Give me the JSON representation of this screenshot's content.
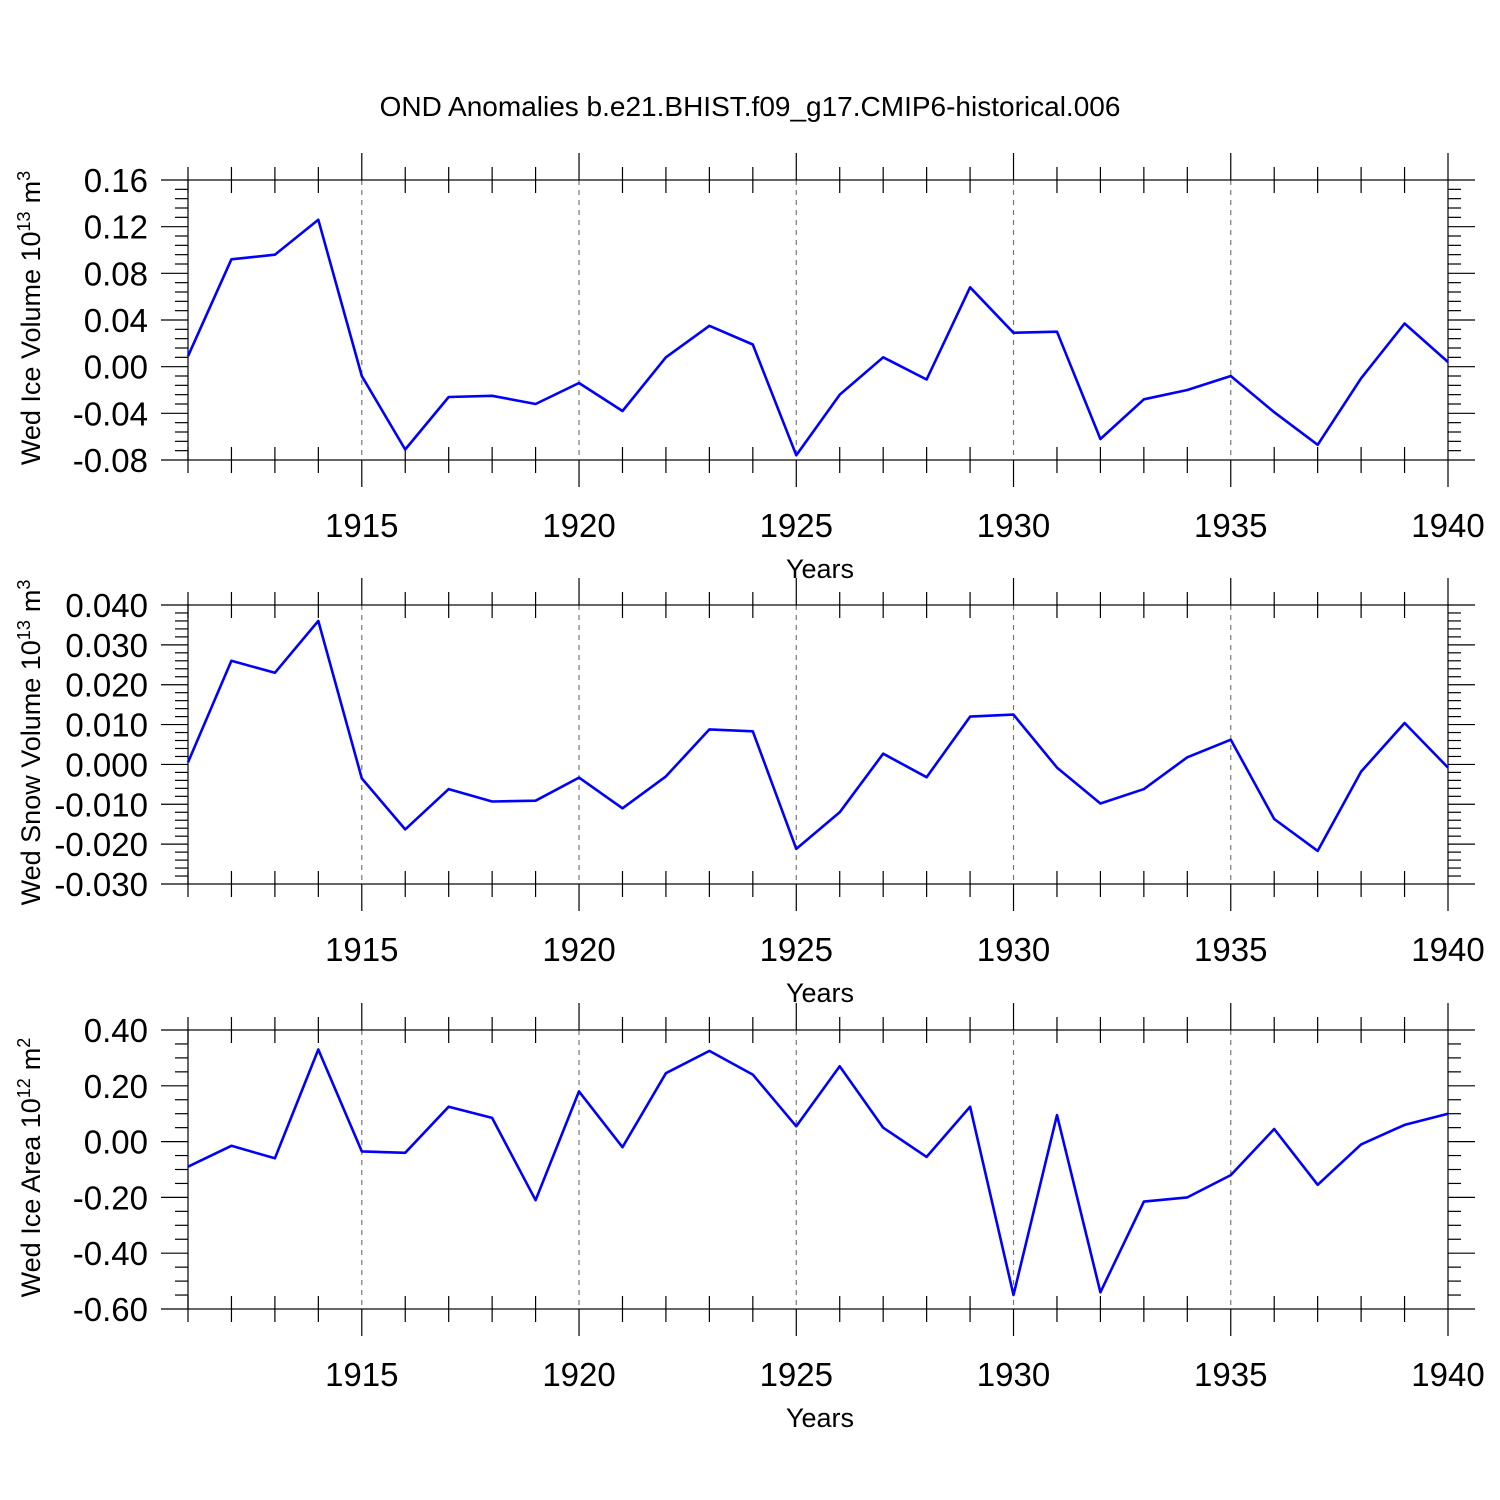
{
  "title": "OND Anomalies b.e21.BHIST.f09_g17.CMIP6-historical.006",
  "chart_data": [
    {
      "type": "line",
      "xlabel": "Years",
      "ylabel_text": "Wed Ice Volume 10",
      "ylabel_exp": "13",
      "ylabel_unit": "m",
      "ylabel_unit_exp": "3",
      "xlim": [
        1911,
        1940
      ],
      "ylim": [
        -0.08,
        0.16
      ],
      "xticks": [
        1915,
        1920,
        1925,
        1930,
        1935,
        1940
      ],
      "xtick_labels": [
        "1915",
        "1920",
        "1925",
        "1930",
        "1935",
        "1940"
      ],
      "yticks": [
        -0.08,
        -0.04,
        0.0,
        0.04,
        0.08,
        0.12,
        0.16
      ],
      "ytick_labels": [
        "-0.08",
        "-0.04",
        "0.00",
        "0.04",
        "0.08",
        "0.12",
        "0.16"
      ],
      "grid": "x-dashed",
      "color": "#0000ff",
      "x": [
        1911,
        1912,
        1913,
        1914,
        1915,
        1916,
        1917,
        1918,
        1919,
        1920,
        1921,
        1922,
        1923,
        1924,
        1925,
        1926,
        1927,
        1928,
        1929,
        1930,
        1931,
        1932,
        1933,
        1934,
        1935,
        1936,
        1937,
        1938,
        1939,
        1940
      ],
      "y": [
        0.009,
        0.092,
        0.096,
        0.126,
        -0.008,
        -0.071,
        -0.026,
        -0.025,
        -0.032,
        -0.014,
        -0.038,
        0.008,
        0.035,
        0.019,
        -0.076,
        -0.024,
        0.008,
        -0.011,
        0.068,
        0.029,
        0.03,
        -0.062,
        -0.028,
        -0.02,
        -0.008,
        -0.039,
        -0.067,
        -0.01,
        0.037,
        0.004
      ]
    },
    {
      "type": "line",
      "xlabel": "Years",
      "ylabel_text": "Wed Snow Volume 10",
      "ylabel_exp": "13",
      "ylabel_unit": "m",
      "ylabel_unit_exp": "3",
      "xlim": [
        1911,
        1940
      ],
      "ylim": [
        -0.03,
        0.04
      ],
      "xticks": [
        1915,
        1920,
        1925,
        1930,
        1935,
        1940
      ],
      "xtick_labels": [
        "1915",
        "1920",
        "1925",
        "1930",
        "1935",
        "1940"
      ],
      "yticks": [
        -0.03,
        -0.02,
        -0.01,
        0.0,
        0.01,
        0.02,
        0.03,
        0.04
      ],
      "ytick_labels": [
        "-0.030",
        "-0.020",
        "-0.010",
        "0.000",
        "0.010",
        "0.020",
        "0.030",
        "0.040"
      ],
      "grid": "x-dashed",
      "color": "#0000ff",
      "x": [
        1911,
        1912,
        1913,
        1914,
        1915,
        1916,
        1917,
        1918,
        1919,
        1920,
        1921,
        1922,
        1923,
        1924,
        1925,
        1926,
        1927,
        1928,
        1929,
        1930,
        1931,
        1932,
        1933,
        1934,
        1935,
        1936,
        1937,
        1938,
        1939,
        1940
      ],
      "y": [
        0.0005,
        0.026,
        0.023,
        0.036,
        -0.0035,
        -0.0163,
        -0.0062,
        -0.0093,
        -0.0091,
        -0.0033,
        -0.011,
        -0.003,
        0.0088,
        0.0083,
        -0.0212,
        -0.012,
        0.0027,
        -0.0032,
        0.012,
        0.0125,
        -0.0008,
        -0.0098,
        -0.0062,
        0.0018,
        0.0062,
        -0.0137,
        -0.0217,
        -0.0018,
        0.0104,
        -0.0008
      ]
    },
    {
      "type": "line",
      "xlabel": "Years",
      "ylabel_text": "Wed Ice Area 10",
      "ylabel_exp": "12",
      "ylabel_unit": "m",
      "ylabel_unit_exp": "2",
      "xlim": [
        1911,
        1940
      ],
      "ylim": [
        -0.6,
        0.4
      ],
      "xticks": [
        1915,
        1920,
        1925,
        1930,
        1935,
        1940
      ],
      "xtick_labels": [
        "1915",
        "1920",
        "1925",
        "1930",
        "1935",
        "1940"
      ],
      "yticks": [
        -0.6,
        -0.4,
        -0.2,
        0.0,
        0.2,
        0.4
      ],
      "ytick_labels": [
        "-0.60",
        "-0.40",
        "-0.20",
        "0.00",
        "0.20",
        "0.40"
      ],
      "grid": "x-dashed",
      "color": "#0000ff",
      "x": [
        1911,
        1912,
        1913,
        1914,
        1915,
        1916,
        1917,
        1918,
        1919,
        1920,
        1921,
        1922,
        1923,
        1924,
        1925,
        1926,
        1927,
        1928,
        1929,
        1930,
        1931,
        1932,
        1933,
        1934,
        1935,
        1936,
        1937,
        1938,
        1939,
        1940
      ],
      "y": [
        -0.09,
        -0.015,
        -0.06,
        0.33,
        -0.035,
        -0.04,
        0.125,
        0.085,
        -0.21,
        0.18,
        -0.02,
        0.245,
        0.325,
        0.24,
        0.055,
        0.27,
        0.05,
        -0.055,
        0.125,
        -0.55,
        0.095,
        -0.54,
        -0.215,
        -0.2,
        -0.12,
        0.045,
        -0.155,
        -0.01,
        0.06,
        0.1
      ]
    }
  ]
}
